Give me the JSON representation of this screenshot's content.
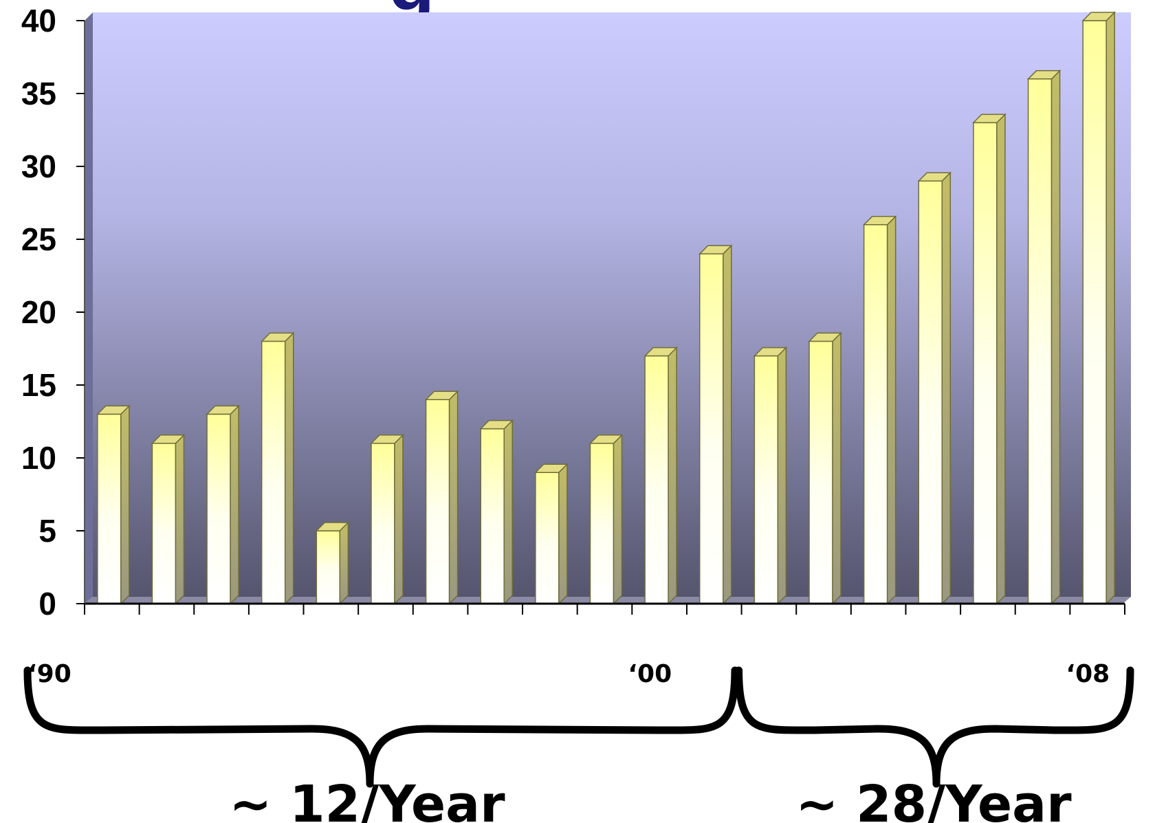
{
  "chart_data": {
    "type": "bar",
    "title": "",
    "title_fragment": "g",
    "xlabel": "",
    "ylabel": "",
    "ylim": [
      0,
      40
    ],
    "y_ticks": [
      "0",
      "5",
      "10",
      "15",
      "20",
      "25",
      "30",
      "35",
      "40"
    ],
    "values": [
      13,
      11,
      13,
      18,
      5,
      11,
      14,
      12,
      9,
      11,
      17,
      24,
      17,
      18,
      26,
      29,
      33,
      36,
      40
    ],
    "x_labels": [
      {
        "label": "‘90",
        "index": 0
      },
      {
        "label": "‘00",
        "index": 10
      },
      {
        "label": "‘08",
        "index": 18
      }
    ],
    "annotations": [
      {
        "text": "~ 12/Year",
        "from_index": 0,
        "to_index": 11
      },
      {
        "text": "~ 28/Year",
        "from_index": 12,
        "to_index": 18
      }
    ],
    "grid": false,
    "legend": "none"
  },
  "colors": {
    "plot_bg_top": "#ccccff",
    "plot_bg_bottom": "#55556e",
    "bar_top": "#ffff99",
    "bar_bottom": "#ffffff",
    "bar_side": "#b5b060",
    "title": "#1a1a7a"
  }
}
